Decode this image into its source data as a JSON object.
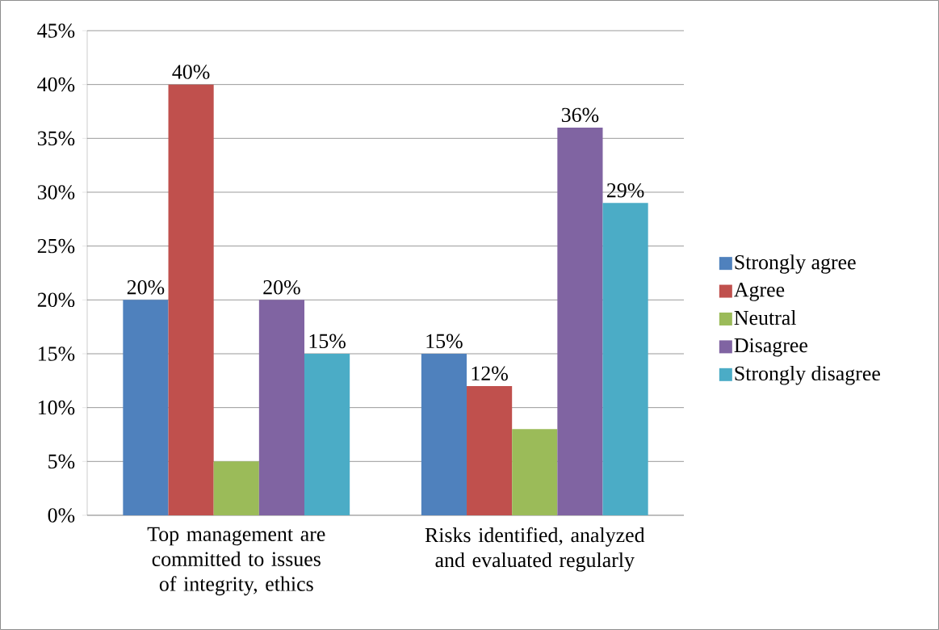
{
  "chart_data": {
    "type": "bar",
    "categories": [
      "Top management are committed to issues of integrity, ethics",
      "Risks identified, analyzed and evaluated regularly"
    ],
    "series": [
      {
        "name": "Strongly agree",
        "color": "#4f81bd",
        "values": [
          20,
          15
        ],
        "value_labels": [
          "20%",
          "15%"
        ]
      },
      {
        "name": "Agree",
        "color": "#c0504d",
        "values": [
          40,
          12
        ],
        "value_labels": [
          "40%",
          "12%"
        ]
      },
      {
        "name": "Neutral",
        "color": "#9bbb59",
        "values": [
          5,
          8
        ],
        "value_labels": [
          null,
          null
        ]
      },
      {
        "name": "Disagree",
        "color": "#8064a2",
        "values": [
          20,
          36
        ],
        "value_labels": [
          "20%",
          "36%"
        ]
      },
      {
        "name": "Strongly disagree",
        "color": "#4bacc6",
        "values": [
          15,
          29
        ],
        "value_labels": [
          "15%",
          "29%"
        ]
      }
    ],
    "ylim": [
      0,
      45
    ],
    "yticks": [
      {
        "value": 0,
        "label": "0%"
      },
      {
        "value": 5,
        "label": "5%"
      },
      {
        "value": 10,
        "label": "10%"
      },
      {
        "value": 15,
        "label": "15%"
      },
      {
        "value": 20,
        "label": "20%"
      },
      {
        "value": 25,
        "label": "25%"
      },
      {
        "value": 30,
        "label": "30%"
      },
      {
        "value": 35,
        "label": "35%"
      },
      {
        "value": 40,
        "label": "40%"
      },
      {
        "value": 45,
        "label": "45%"
      }
    ],
    "grid": "y",
    "legend": "right"
  }
}
